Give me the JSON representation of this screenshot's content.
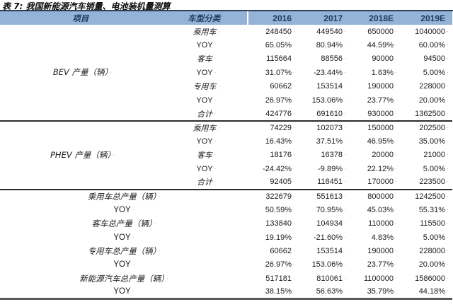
{
  "title": "表 7: 我国新能源汽车销量、电池装机量测算",
  "colors": {
    "header_bg": "#95b3d7",
    "header_text": "#1d3a60",
    "title_rule": "#2e4158",
    "section_rule": "#2b2b2b",
    "bottom_rule": "#5a5a5a"
  },
  "table": {
    "columns": [
      "项目",
      "车型分类",
      "2016",
      "2017",
      "2018E",
      "2019E"
    ],
    "sections": [
      {
        "label": "BEV 产量（辆）",
        "merged": false,
        "rows": [
          {
            "category": "乘用车",
            "values": [
              "248450",
              "449540",
              "650000",
              "1040000"
            ]
          },
          {
            "category": "YOY",
            "values": [
              "65.05%",
              "80.94%",
              "44.59%",
              "60.00%"
            ]
          },
          {
            "category": "客车",
            "values": [
              "115664",
              "88556",
              "90000",
              "94500"
            ]
          },
          {
            "category": "YOY",
            "values": [
              "31.07%",
              "-23.44%",
              "1.63%",
              "5.00%"
            ]
          },
          {
            "category": "专用车",
            "values": [
              "60662",
              "153514",
              "190000",
              "228000"
            ]
          },
          {
            "category": "YOY",
            "values": [
              "26.97%",
              "153.06%",
              "23.77%",
              "20.00%"
            ]
          },
          {
            "category": "合计",
            "values": [
              "424776",
              "691610",
              "930000",
              "1362500"
            ]
          }
        ]
      },
      {
        "label": "PHEV 产量（辆）",
        "merged": false,
        "rows": [
          {
            "category": "乘用车",
            "values": [
              "74229",
              "102073",
              "150000",
              "202500"
            ]
          },
          {
            "category": "YOY",
            "values": [
              "16.43%",
              "37.51%",
              "46.95%",
              "35.00%"
            ]
          },
          {
            "category": "客车",
            "values": [
              "18176",
              "16378",
              "20000",
              "21000"
            ]
          },
          {
            "category": "YOY",
            "values": [
              "-24.42%",
              "-9.89%",
              "22.12%",
              "5.00%"
            ]
          },
          {
            "category": "合计",
            "values": [
              "92405",
              "118451",
              "170000",
              "223500"
            ]
          }
        ]
      },
      {
        "label": "",
        "merged": true,
        "rows": [
          {
            "category": "乘用车总产量（辆）",
            "values": [
              "322679",
              "551613",
              "800000",
              "1242500"
            ]
          },
          {
            "category": "YOY",
            "values": [
              "50.59%",
              "70.95%",
              "45.03%",
              "55.31%"
            ]
          },
          {
            "category": "客车总产量（辆）",
            "values": [
              "133840",
              "104934",
              "110000",
              "115500"
            ]
          },
          {
            "category": "YOY",
            "values": [
              "19.19%",
              "-21.60%",
              "4.83%",
              "5.00%"
            ]
          },
          {
            "category": "专用车总产量（辆）",
            "values": [
              "60662",
              "153514",
              "190000",
              "228000"
            ]
          },
          {
            "category": "YOY",
            "values": [
              "26.97%",
              "153.06%",
              "23.77%",
              "20.00%"
            ]
          },
          {
            "category": "新能源汽车总产量（辆）",
            "values": [
              "517181",
              "810061",
              "1100000",
              "1586000"
            ]
          },
          {
            "category": "YOY",
            "values": [
              "38.15%",
              "56.63%",
              "35.79%",
              "44.18%"
            ]
          }
        ]
      }
    ]
  }
}
